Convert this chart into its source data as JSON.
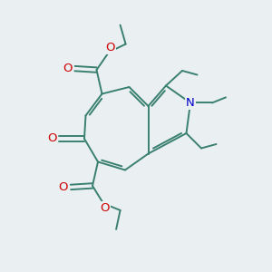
{
  "background_color": "#eaeff2",
  "bond_color": "#3a8070",
  "O_color": "#cc0000",
  "N_color": "#0000cc",
  "bond_width": 1.4,
  "fig_size": [
    3.0,
    3.0
  ],
  "dpi": 100,
  "xlim": [
    0,
    10
  ],
  "ylim": [
    0,
    10
  ],
  "font_size": 9.5
}
